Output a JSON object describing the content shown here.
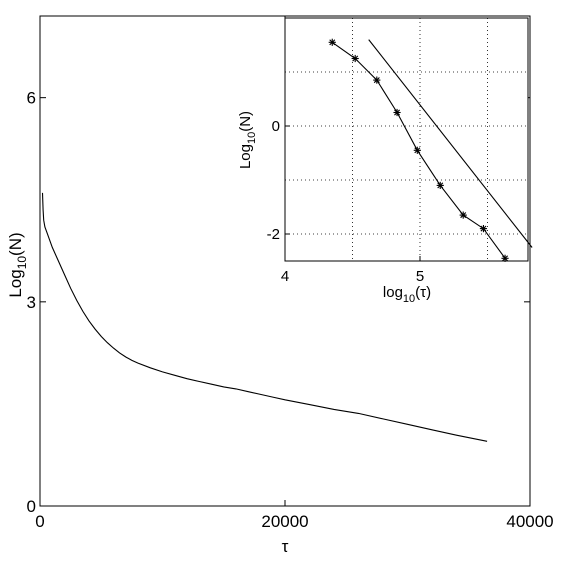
{
  "chart_data": [
    {
      "type": "line",
      "xlabel": "τ",
      "ylabel": {
        "base": "Log",
        "subscript": "10",
        "suffix": "(N)"
      },
      "xlim": [
        0,
        40000
      ],
      "ylim": [
        0,
        7.2
      ],
      "xticks": [
        0,
        20000,
        40000
      ],
      "xtick_labels": [
        "0",
        "20000",
        "40000"
      ],
      "yticks": [
        0,
        3,
        6
      ],
      "ytick_labels": [
        "0",
        "3",
        "6"
      ],
      "grid": false,
      "series": [
        {
          "x": [
            200,
            250,
            300,
            400,
            600,
            1000,
            1500,
            2000,
            2500,
            3000,
            3500,
            4000,
            4500,
            5000,
            5500,
            6000,
            6500,
            7000,
            7500,
            8000,
            9000,
            10000,
            11000,
            12000,
            13000,
            14000,
            15000,
            16000,
            17000,
            18000,
            19000,
            20000,
            22000,
            24000,
            26000,
            28000,
            30000,
            32000,
            34000,
            36500
          ],
          "y": [
            4.6,
            4.35,
            4.2,
            4.1,
            4.0,
            3.8,
            3.6,
            3.4,
            3.2,
            3.02,
            2.86,
            2.72,
            2.6,
            2.49,
            2.4,
            2.32,
            2.25,
            2.19,
            2.14,
            2.1,
            2.03,
            1.97,
            1.92,
            1.87,
            1.83,
            1.79,
            1.75,
            1.72,
            1.68,
            1.64,
            1.6,
            1.56,
            1.49,
            1.42,
            1.36,
            1.28,
            1.2,
            1.12,
            1.04,
            0.95
          ]
        }
      ]
    },
    {
      "type": "line",
      "xlabel": {
        "base": "log",
        "subscript": "10",
        "suffix": "(τ)"
      },
      "ylabel": {
        "base": "Log",
        "subscript": "10",
        "suffix": "(N)"
      },
      "xlim": [
        4,
        5.8
      ],
      "ylim": [
        -2.5,
        2
      ],
      "xticks": [
        4,
        5
      ],
      "xtick_labels": [
        "4",
        "5"
      ],
      "yticks": [
        -2,
        0
      ],
      "ytick_labels": [
        "-2",
        "0"
      ],
      "xgrid": [
        4.5,
        5,
        5.5
      ],
      "ygrid": [
        -2,
        -1,
        0,
        1
      ],
      "grid": true,
      "series": [
        {
          "marker": "asterisk",
          "x": [
            4.35,
            4.52,
            4.68,
            4.83,
            4.98,
            5.15,
            5.32,
            5.47,
            5.63
          ],
          "y": [
            1.55,
            1.25,
            0.85,
            0.25,
            -0.45,
            -1.1,
            -1.65,
            -1.9,
            -2.45
          ]
        },
        {
          "marker": "none",
          "x": [
            4.62,
            5.83
          ],
          "y": [
            1.6,
            -2.25
          ]
        }
      ]
    }
  ]
}
